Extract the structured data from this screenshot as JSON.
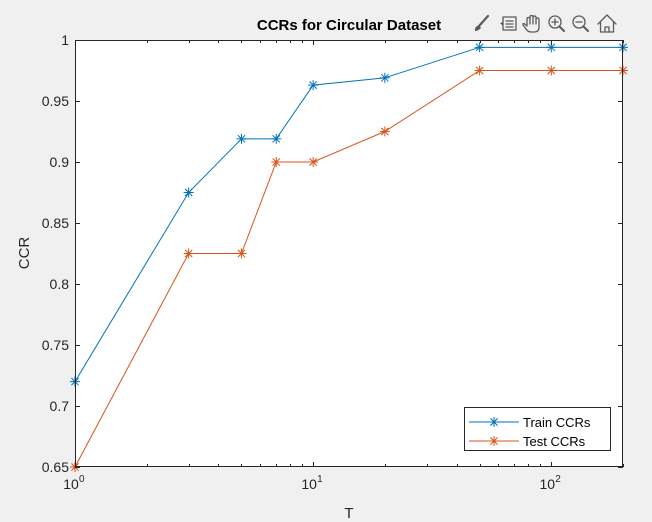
{
  "toolbar": {
    "icons": [
      "brush-icon",
      "data-tips-icon",
      "pan-hand-icon",
      "zoom-in-icon",
      "zoom-out-icon",
      "home-icon"
    ]
  },
  "colors": {
    "background": "#f0f0f0",
    "axes_bg": "#ffffff",
    "train": "#0072BD",
    "test": "#D95319"
  },
  "chart_data": {
    "type": "line",
    "title": "CCRs for Circular Dataset",
    "xlabel": "T",
    "ylabel": "CCR",
    "xscale": "log",
    "xlim": [
      1,
      200
    ],
    "ylim": [
      0.65,
      1
    ],
    "grid": false,
    "legend_location": "bottom-right",
    "x_ticks": [
      1,
      10,
      100
    ],
    "x_tick_labels": [
      {
        "base": "10",
        "exp": "0"
      },
      {
        "base": "10",
        "exp": "1"
      },
      {
        "base": "10",
        "exp": "2"
      }
    ],
    "y_ticks": [
      0.65,
      0.7,
      0.75,
      0.8,
      0.85,
      0.9,
      0.95,
      1
    ],
    "y_tick_labels": [
      "0.65",
      "0.7",
      "0.75",
      "0.8",
      "0.85",
      "0.9",
      "0.95",
      "1"
    ],
    "x": [
      1,
      3,
      5,
      7,
      10,
      20,
      50,
      100,
      200
    ],
    "series": [
      {
        "name": "Train CCRs",
        "color": "#0072BD",
        "marker": "asterisk",
        "values": [
          0.72,
          0.875,
          0.919,
          0.919,
          0.963,
          0.969,
          0.994,
          0.994,
          0.994
        ]
      },
      {
        "name": "Test CCRs",
        "color": "#D95319",
        "marker": "asterisk",
        "values": [
          0.65,
          0.825,
          0.825,
          0.9,
          0.9,
          0.925,
          0.975,
          0.975,
          0.975
        ]
      }
    ]
  }
}
